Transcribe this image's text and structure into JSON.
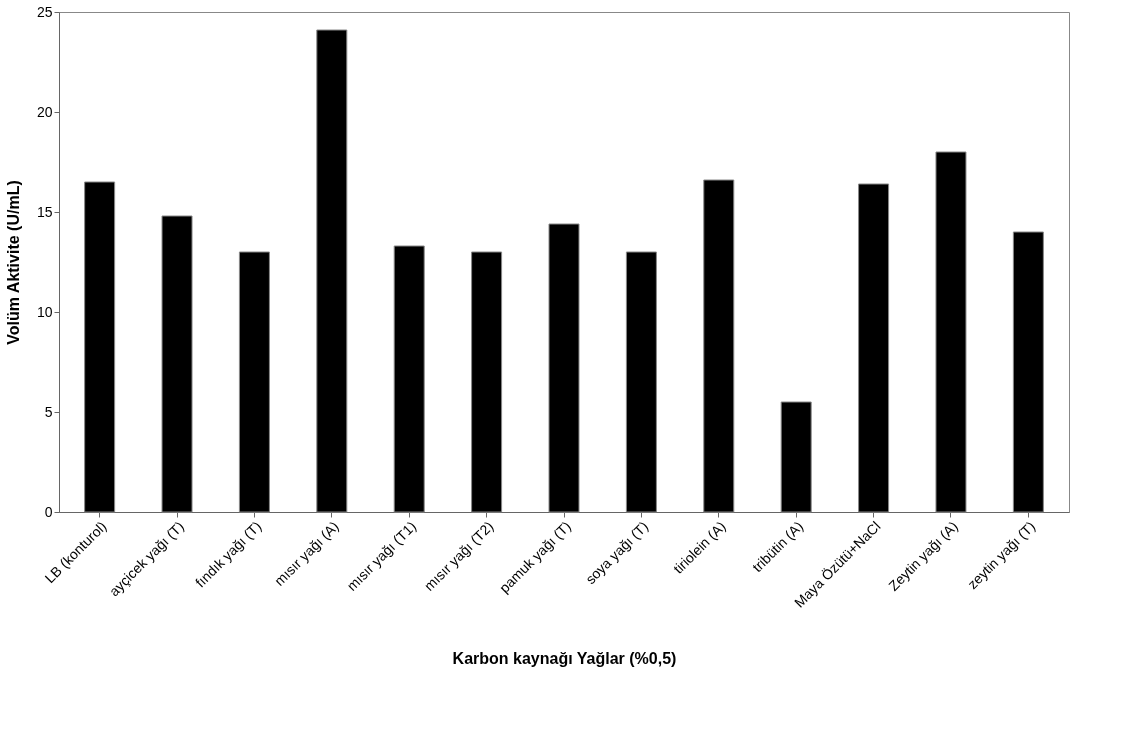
{
  "chart_data": {
    "type": "bar",
    "xlabel": "Karbon kaynağı Yağlar (%0,5)",
    "ylabel": "Volüm Aktivite (U/mL)",
    "categories": [
      "LB (konturol)",
      "ayçicek yağı (T)",
      "fındık yağı (T)",
      "mısır yağı (A)",
      "mısır yağı (T1)",
      "mısır yağı (T2)",
      "pamuk yağı (T)",
      "soya yağı (T)",
      "tiriolein (A)",
      "tribütin (A)",
      "Maya Özütü+NaCl",
      "Zeytin yağı (A)",
      "zeytin yağı (T)"
    ],
    "values": [
      16.5,
      14.8,
      13.0,
      24.1,
      13.3,
      13.0,
      14.4,
      13.0,
      16.6,
      5.5,
      16.4,
      18.0,
      14.0
    ],
    "color": "#000000",
    "ylim": [
      0,
      25
    ],
    "yticks": [
      0,
      5,
      10,
      15,
      20,
      25
    ],
    "grid": false
  }
}
